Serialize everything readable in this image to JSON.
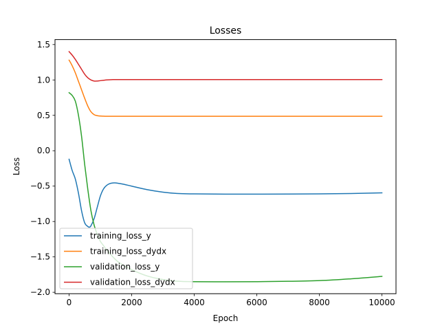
{
  "chart_data": {
    "type": "line",
    "title": "Losses",
    "xlabel": "Epoch",
    "ylabel": "Loss",
    "xlim": [
      -450,
      10450
    ],
    "ylim": [
      -2.02,
      1.57
    ],
    "xticks": [
      0,
      2000,
      4000,
      6000,
      8000,
      10000
    ],
    "xtick_labels": [
      "0",
      "2000",
      "4000",
      "6000",
      "8000",
      "10000"
    ],
    "yticks": [
      -2.0,
      -1.5,
      -1.0,
      -0.5,
      0.0,
      0.5,
      1.0,
      1.5
    ],
    "ytick_labels": [
      "−2.0",
      "−1.5",
      "−1.0",
      "−0.5",
      "0.0",
      "0.5",
      "1.0",
      "1.5"
    ],
    "grid": false,
    "legend": "lower-left",
    "series": [
      {
        "name": "training_loss_y",
        "color": "#1f77b4",
        "x": [
          0,
          100,
          200,
          300,
          400,
          500,
          600,
          650,
          700,
          800,
          900,
          1000,
          1100,
          1200,
          1300,
          1400,
          1500,
          1700,
          2000,
          2500,
          3000,
          3500,
          4000,
          5000,
          6000,
          7000,
          8000,
          9000,
          10000
        ],
        "y": [
          -0.12,
          -0.28,
          -0.4,
          -0.6,
          -0.85,
          -1.02,
          -1.07,
          -1.08,
          -1.06,
          -0.96,
          -0.8,
          -0.64,
          -0.54,
          -0.49,
          -0.465,
          -0.455,
          -0.455,
          -0.47,
          -0.5,
          -0.55,
          -0.585,
          -0.605,
          -0.61,
          -0.613,
          -0.613,
          -0.612,
          -0.61,
          -0.605,
          -0.595
        ]
      },
      {
        "name": "training_loss_dydx",
        "color": "#ff7f0e",
        "x": [
          0,
          100,
          200,
          300,
          400,
          500,
          600,
          700,
          800,
          900,
          1000,
          1100,
          1200,
          1400,
          1600,
          2000,
          3000,
          4000,
          6000,
          8000,
          10000
        ],
        "y": [
          1.28,
          1.2,
          1.1,
          0.98,
          0.86,
          0.74,
          0.63,
          0.55,
          0.51,
          0.495,
          0.49,
          0.488,
          0.487,
          0.487,
          0.487,
          0.487,
          0.487,
          0.487,
          0.487,
          0.487,
          0.487
        ]
      },
      {
        "name": "validation_loss_y",
        "color": "#2ca02c",
        "x": [
          0,
          100,
          200,
          300,
          400,
          500,
          600,
          700,
          800,
          900,
          1000,
          1100,
          1200,
          1400,
          1600,
          2000,
          2500,
          3000,
          3500,
          4000,
          5000,
          6000,
          7000,
          8000,
          9000,
          10000
        ],
        "y": [
          0.82,
          0.78,
          0.7,
          0.5,
          0.2,
          -0.2,
          -0.55,
          -0.85,
          -1.05,
          -1.18,
          -1.28,
          -1.34,
          -1.4,
          -1.5,
          -1.58,
          -1.68,
          -1.77,
          -1.82,
          -1.845,
          -1.85,
          -1.852,
          -1.85,
          -1.845,
          -1.835,
          -1.81,
          -1.775
        ]
      },
      {
        "name": "validation_loss_dydx",
        "color": "#d62728",
        "x": [
          0,
          100,
          200,
          300,
          400,
          500,
          600,
          700,
          800,
          900,
          1000,
          1100,
          1200,
          1400,
          1600,
          2000,
          3000,
          4000,
          6000,
          8000,
          10000
        ],
        "y": [
          1.4,
          1.35,
          1.29,
          1.22,
          1.15,
          1.08,
          1.03,
          1.0,
          0.985,
          0.985,
          0.99,
          0.995,
          1.0,
          1.005,
          1.005,
          1.005,
          1.005,
          1.005,
          1.005,
          1.005,
          1.005
        ]
      }
    ]
  }
}
